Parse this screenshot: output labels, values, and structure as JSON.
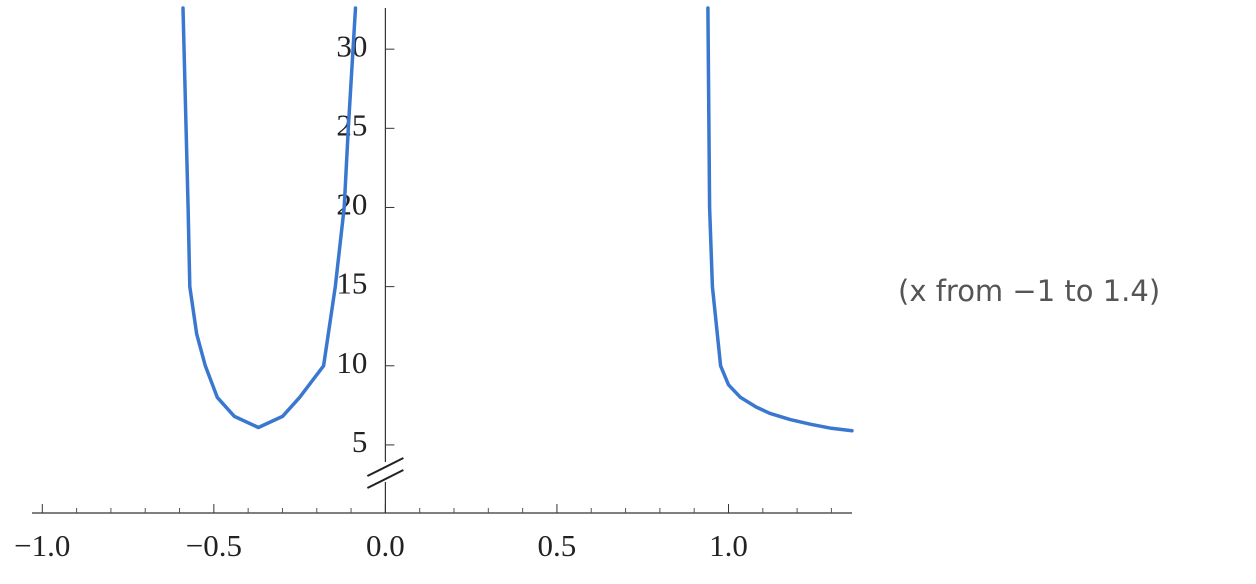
{
  "chart_data": {
    "type": "line",
    "annotation": "(x from −1 to 1.4)",
    "x": [
      -0.59,
      -0.575,
      -0.57,
      -0.55,
      -0.525,
      -0.49,
      -0.44,
      -0.37,
      -0.3,
      -0.25,
      -0.18,
      -0.146,
      -0.12,
      -0.108,
      -0.087,
      null,
      0.94,
      0.945,
      0.953,
      0.977,
      1.0,
      1.035,
      1.08,
      1.12,
      1.18,
      1.24,
      1.3,
      1.36
    ],
    "series": [
      {
        "color": "#3a78d0",
        "values": [
          32.6,
          20,
          15,
          12,
          10,
          8,
          6.8,
          6.1,
          6.8,
          8,
          10,
          15,
          20,
          25,
          32.6,
          null,
          32.6,
          20,
          15,
          10,
          8.8,
          8,
          7.4,
          7,
          6.6,
          6.3,
          6.05,
          5.9
        ]
      }
    ],
    "xlim": [
      -1.03,
      1.36
    ],
    "ylim": [
      0.7,
      32.6
    ],
    "xticks": [
      {
        "value": -1,
        "label": "−1.0"
      },
      {
        "value": -0.5,
        "label": "−0.5"
      },
      {
        "value": 0,
        "label": "0.0"
      },
      {
        "value": 0.5,
        "label": "0.5"
      },
      {
        "value": 1,
        "label": "1.0"
      }
    ],
    "xminorticks": [
      -0.9,
      -0.8,
      -0.7,
      -0.6,
      -0.4,
      -0.3,
      -0.2,
      -0.1,
      0.1,
      0.2,
      0.3,
      0.4,
      0.6,
      0.7,
      0.8,
      0.9,
      1.1,
      1.2,
      1.3
    ],
    "yticks": [
      5,
      10,
      15,
      20,
      25,
      30
    ],
    "axis_break": true
  }
}
